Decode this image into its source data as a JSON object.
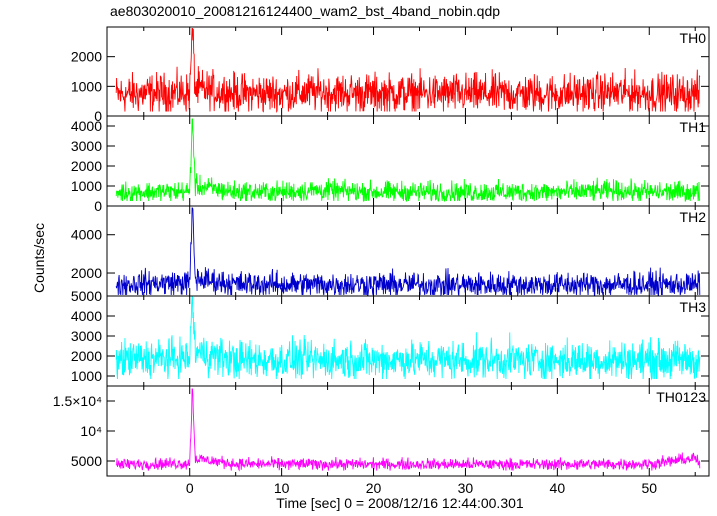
{
  "chart_data": {
    "type": "line",
    "title": "ae803020010_20081216124400_wam2_bst_4band_nobin.qdp",
    "xlabel": "Time [sec] 0 = 2008/12/16 12:44:00.301",
    "ylabel": "Counts/sec",
    "xlim": [
      -9,
      56.5
    ],
    "x_ticks": [
      0,
      10,
      20,
      30,
      40,
      50
    ],
    "x_tick_labels": [
      "0",
      "10",
      "20",
      "30",
      "40",
      "50"
    ],
    "panels": [
      {
        "name": "TH0",
        "color": "#ff0000",
        "ylim": [
          0,
          3000
        ],
        "y_ticks": [
          0,
          1000,
          2000
        ],
        "y_tick_labels": [
          "0",
          "1000",
          "2000"
        ],
        "baseline": 750,
        "noise": 330,
        "floor": 150,
        "burst_x": 0.3,
        "burst_peak": 2950,
        "points": [
          [
            -8,
            720
          ],
          [
            -5,
            760
          ],
          [
            0,
            780
          ],
          [
            0.3,
            2950
          ],
          [
            0.6,
            900
          ],
          [
            5,
            760
          ],
          [
            10,
            750
          ],
          [
            13.5,
            800
          ],
          [
            20,
            760
          ],
          [
            30,
            750
          ],
          [
            40,
            740
          ],
          [
            46,
            790
          ],
          [
            50,
            760
          ],
          [
            55.5,
            740
          ]
        ]
      },
      {
        "name": "TH1",
        "color": "#00ff00",
        "ylim": [
          0,
          4500
        ],
        "y_ticks": [
          0,
          1000,
          2000,
          3000,
          4000
        ],
        "y_tick_labels": [
          "0",
          "1000",
          "2000",
          "3000",
          "4000"
        ],
        "baseline": 700,
        "noise": 260,
        "floor": 250,
        "burst_x": 0.3,
        "burst_peak": 4350,
        "points": [
          [
            -8,
            680
          ],
          [
            -5,
            700
          ],
          [
            0,
            720
          ],
          [
            0.3,
            4350
          ],
          [
            0.6,
            1000
          ],
          [
            5,
            700
          ],
          [
            10,
            690
          ],
          [
            13.5,
            780
          ],
          [
            20,
            700
          ],
          [
            30,
            690
          ],
          [
            40,
            690
          ],
          [
            46,
            760
          ],
          [
            50,
            700
          ],
          [
            55.5,
            680
          ]
        ]
      },
      {
        "name": "TH2",
        "color": "#0000cc",
        "ylim": [
          800,
          5500
        ],
        "y_ticks": [
          2000,
          4000
        ],
        "y_tick_labels": [
          "2000",
          "4000"
        ],
        "baseline": 1400,
        "noise": 330,
        "floor": 850,
        "burst_x": 0.3,
        "burst_peak": 5400,
        "points": [
          [
            -8,
            1400
          ],
          [
            -5,
            1450
          ],
          [
            0,
            1500
          ],
          [
            0.3,
            5400
          ],
          [
            0.6,
            1700
          ],
          [
            5,
            1420
          ],
          [
            10,
            1400
          ],
          [
            20,
            1400
          ],
          [
            30,
            1380
          ],
          [
            40,
            1380
          ],
          [
            50,
            1400
          ],
          [
            55.5,
            1380
          ]
        ]
      },
      {
        "name": "TH3",
        "color": "#00ffff",
        "ylim": [
          500,
          5000
        ],
        "y_ticks": [
          1000,
          2000,
          3000,
          4000,
          5000
        ],
        "y_tick_labels": [
          "1000",
          "2000",
          "3000",
          "4000",
          "5000"
        ],
        "baseline": 1800,
        "noise": 480,
        "floor": 850,
        "burst_x": 0.3,
        "burst_peak": 5000,
        "points": [
          [
            -8,
            1800
          ],
          [
            -5,
            1850
          ],
          [
            0,
            1900
          ],
          [
            0.3,
            5000
          ],
          [
            0.6,
            2200
          ],
          [
            5,
            1800
          ],
          [
            10,
            1800
          ],
          [
            20,
            1800
          ],
          [
            30,
            1800
          ],
          [
            40,
            1780
          ],
          [
            50,
            1800
          ],
          [
            55.5,
            1780
          ]
        ]
      },
      {
        "name": "TH0123",
        "color": "#ff00ff",
        "ylim": [
          2500,
          17500
        ],
        "y_ticks": [
          5000,
          10000,
          15000
        ],
        "y_tick_labels": [
          "5000",
          "10⁴",
          "1.5×10⁴"
        ],
        "baseline": 4500,
        "noise": 480,
        "floor": 3400,
        "burst_x": 0.3,
        "burst_peak": 17000,
        "points": [
          [
            -8,
            4400
          ],
          [
            -5,
            4500
          ],
          [
            0,
            4600
          ],
          [
            0.3,
            17000
          ],
          [
            0.6,
            5400
          ],
          [
            5,
            4500
          ],
          [
            10,
            4500
          ],
          [
            20,
            4450
          ],
          [
            30,
            4450
          ],
          [
            40,
            4450
          ],
          [
            50,
            4500
          ],
          [
            55,
            5500
          ],
          [
            55.5,
            4450
          ]
        ]
      }
    ]
  }
}
